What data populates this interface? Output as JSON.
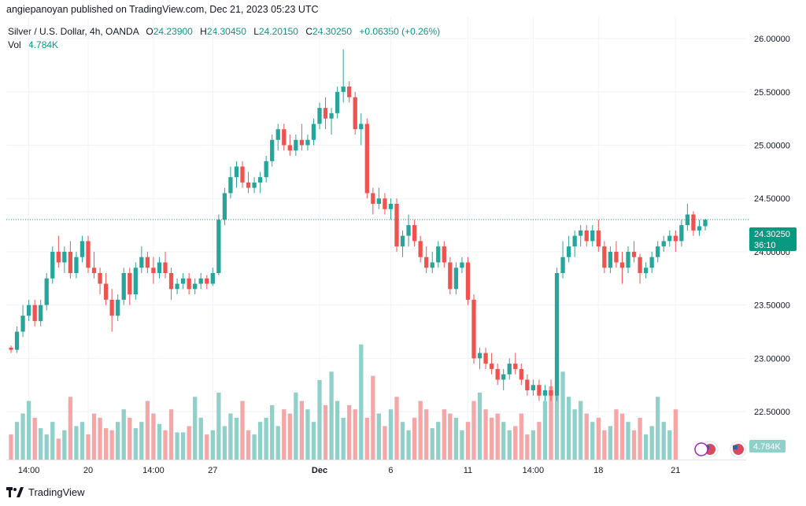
{
  "header": {
    "publisher_line": "angiepanoyan published on TradingView.com, Dec 21, 2023 05:23 UTC"
  },
  "legend": {
    "symbol": "Silver / U.S. Dollar, 4h, OANDA",
    "open_label": "O",
    "open": "24.23900",
    "high_label": "H",
    "high": "24.30450",
    "low_label": "L",
    "low": "24.20150",
    "close_label": "C",
    "close": "24.30250",
    "change": "+0.06350 (+0.26%)",
    "vol_label": "Vol",
    "vol_value": "4.784K"
  },
  "price_badge": {
    "price": "24.30250",
    "countdown": "36:10"
  },
  "volume_badge": "4.784K",
  "footer": {
    "brand": "TradingView"
  },
  "colors": {
    "up": "#26a69a",
    "down": "#ef5350",
    "up_vol": "#8fd0c8",
    "down_vol": "#f5a6a6",
    "badge": "#089981",
    "grid": "#f0f3fa"
  },
  "chart_data": {
    "type": "candlestick",
    "y_ticks": [
      "22.50000",
      "23.00000",
      "23.50000",
      "24.00000",
      "24.50000",
      "25.00000",
      "25.50000",
      "26.00000"
    ],
    "ylim": [
      22.05,
      26.2
    ],
    "x_ticks": [
      {
        "label": "14:00",
        "idx": 3
      },
      {
        "label": "20",
        "idx": 13
      },
      {
        "label": "14:00",
        "idx": 24
      },
      {
        "label": "27",
        "idx": 34
      },
      {
        "label": "Dec",
        "idx": 52
      },
      {
        "label": "6",
        "idx": 64
      },
      {
        "label": "11",
        "idx": 77
      },
      {
        "label": "14:00",
        "idx": 88
      },
      {
        "label": "18",
        "idx": 99
      },
      {
        "label": "21",
        "idx": 112
      }
    ],
    "grid": true,
    "last_price": 24.3025,
    "ohlc": [
      [
        23.1,
        23.12,
        23.05,
        23.08
      ],
      [
        23.08,
        23.3,
        23.05,
        23.25
      ],
      [
        23.25,
        23.5,
        23.2,
        23.4
      ],
      [
        23.4,
        23.55,
        23.35,
        23.5
      ],
      [
        23.5,
        23.55,
        23.3,
        23.35
      ],
      [
        23.35,
        23.55,
        23.3,
        23.5
      ],
      [
        23.5,
        23.8,
        23.45,
        23.75
      ],
      [
        23.75,
        24.05,
        23.7,
        24.0
      ],
      [
        24.0,
        24.15,
        23.85,
        23.9
      ],
      [
        23.9,
        24.05,
        23.8,
        24.0
      ],
      [
        24.0,
        24.1,
        23.75,
        23.8
      ],
      [
        23.8,
        24.0,
        23.75,
        23.95
      ],
      [
        23.95,
        24.15,
        23.9,
        24.1
      ],
      [
        24.1,
        24.15,
        23.8,
        23.85
      ],
      [
        23.85,
        24.0,
        23.75,
        23.8
      ],
      [
        23.8,
        23.85,
        23.6,
        23.7
      ],
      [
        23.7,
        23.8,
        23.5,
        23.55
      ],
      [
        23.55,
        23.65,
        23.25,
        23.4
      ],
      [
        23.4,
        23.6,
        23.35,
        23.55
      ],
      [
        23.55,
        23.85,
        23.5,
        23.8
      ],
      [
        23.8,
        23.85,
        23.5,
        23.6
      ],
      [
        23.6,
        23.9,
        23.55,
        23.85
      ],
      [
        23.85,
        24.05,
        23.8,
        23.95
      ],
      [
        23.95,
        24.0,
        23.8,
        23.85
      ],
      [
        23.85,
        23.95,
        23.7,
        23.8
      ],
      [
        23.8,
        23.95,
        23.75,
        23.9
      ],
      [
        23.9,
        24.0,
        23.75,
        23.8
      ],
      [
        23.8,
        23.85,
        23.55,
        23.65
      ],
      [
        23.65,
        23.75,
        23.6,
        23.7
      ],
      [
        23.7,
        23.8,
        23.65,
        23.75
      ],
      [
        23.75,
        23.8,
        23.6,
        23.65
      ],
      [
        23.65,
        23.75,
        23.6,
        23.7
      ],
      [
        23.7,
        23.8,
        23.65,
        23.75
      ],
      [
        23.75,
        23.78,
        23.65,
        23.7
      ],
      [
        23.7,
        23.85,
        23.68,
        23.8
      ],
      [
        23.8,
        24.35,
        23.78,
        24.3
      ],
      [
        24.3,
        24.6,
        24.25,
        24.55
      ],
      [
        24.55,
        24.8,
        24.5,
        24.7
      ],
      [
        24.7,
        24.85,
        24.6,
        24.8
      ],
      [
        24.8,
        24.85,
        24.6,
        24.65
      ],
      [
        24.65,
        24.75,
        24.55,
        24.6
      ],
      [
        24.6,
        24.7,
        24.55,
        24.65
      ],
      [
        24.65,
        24.75,
        24.55,
        24.7
      ],
      [
        24.7,
        24.9,
        24.65,
        24.85
      ],
      [
        24.85,
        25.1,
        24.8,
        25.05
      ],
      [
        25.05,
        25.2,
        24.95,
        25.15
      ],
      [
        25.15,
        25.2,
        24.95,
        25.0
      ],
      [
        25.0,
        25.1,
        24.9,
        24.95
      ],
      [
        24.95,
        25.1,
        24.9,
        25.05
      ],
      [
        25.05,
        25.2,
        24.95,
        25.0
      ],
      [
        25.0,
        25.1,
        24.95,
        25.05
      ],
      [
        25.05,
        25.25,
        25.0,
        25.2
      ],
      [
        25.2,
        25.4,
        25.15,
        25.35
      ],
      [
        25.35,
        25.45,
        25.15,
        25.25
      ],
      [
        25.25,
        25.35,
        25.1,
        25.3
      ],
      [
        25.3,
        25.55,
        25.25,
        25.5
      ],
      [
        25.5,
        25.9,
        25.4,
        25.55
      ],
      [
        25.55,
        25.6,
        25.4,
        25.45
      ],
      [
        25.45,
        25.5,
        25.1,
        25.15
      ],
      [
        25.15,
        25.3,
        25.0,
        25.2
      ],
      [
        25.2,
        25.25,
        24.5,
        24.55
      ],
      [
        24.55,
        24.6,
        24.35,
        24.45
      ],
      [
        24.45,
        24.6,
        24.4,
        24.5
      ],
      [
        24.5,
        24.55,
        24.35,
        24.4
      ],
      [
        24.4,
        24.5,
        24.3,
        24.45
      ],
      [
        24.45,
        24.5,
        24.0,
        24.05
      ],
      [
        24.05,
        24.2,
        23.95,
        24.15
      ],
      [
        24.15,
        24.35,
        24.05,
        24.25
      ],
      [
        24.25,
        24.3,
        24.05,
        24.1
      ],
      [
        24.1,
        24.15,
        23.9,
        23.95
      ],
      [
        23.95,
        24.05,
        23.8,
        23.85
      ],
      [
        23.85,
        24.0,
        23.8,
        23.9
      ],
      [
        23.9,
        24.1,
        23.85,
        24.05
      ],
      [
        24.05,
        24.1,
        23.85,
        23.9
      ],
      [
        23.9,
        23.95,
        23.6,
        23.65
      ],
      [
        23.65,
        23.9,
        23.6,
        23.85
      ],
      [
        23.85,
        23.95,
        23.8,
        23.9
      ],
      [
        23.9,
        23.95,
        23.5,
        23.55
      ],
      [
        23.55,
        23.6,
        22.95,
        23.0
      ],
      [
        23.0,
        23.1,
        22.9,
        23.05
      ],
      [
        23.05,
        23.1,
        22.9,
        22.95
      ],
      [
        22.95,
        23.05,
        22.85,
        22.9
      ],
      [
        22.9,
        22.95,
        22.75,
        22.8
      ],
      [
        22.8,
        22.9,
        22.7,
        22.85
      ],
      [
        22.85,
        23.0,
        22.8,
        22.95
      ],
      [
        22.95,
        23.05,
        22.85,
        22.9
      ],
      [
        22.9,
        22.95,
        22.75,
        22.8
      ],
      [
        22.8,
        22.85,
        22.65,
        22.7
      ],
      [
        22.7,
        22.8,
        22.65,
        22.75
      ],
      [
        22.75,
        22.8,
        22.6,
        22.65
      ],
      [
        22.65,
        22.75,
        22.6,
        22.7
      ],
      [
        22.7,
        22.8,
        22.6,
        22.65
      ],
      [
        22.65,
        23.85,
        22.6,
        23.8
      ],
      [
        23.8,
        24.1,
        23.75,
        23.95
      ],
      [
        23.95,
        24.15,
        23.9,
        24.05
      ],
      [
        24.05,
        24.2,
        23.95,
        24.15
      ],
      [
        24.15,
        24.25,
        24.05,
        24.2
      ],
      [
        24.2,
        24.25,
        24.05,
        24.1
      ],
      [
        24.1,
        24.25,
        24.05,
        24.2
      ],
      [
        24.2,
        24.3,
        24.0,
        24.05
      ],
      [
        24.05,
        24.1,
        23.8,
        23.85
      ],
      [
        23.85,
        24.05,
        23.8,
        24.0
      ],
      [
        24.0,
        24.1,
        23.85,
        23.9
      ],
      [
        23.9,
        24.0,
        23.7,
        23.85
      ],
      [
        23.85,
        24.05,
        23.8,
        24.0
      ],
      [
        24.0,
        24.1,
        23.9,
        23.95
      ],
      [
        23.95,
        23.98,
        23.7,
        23.8
      ],
      [
        23.8,
        23.9,
        23.75,
        23.85
      ],
      [
        23.85,
        24.0,
        23.8,
        23.95
      ],
      [
        23.95,
        24.1,
        23.9,
        24.05
      ],
      [
        24.05,
        24.15,
        24.0,
        24.1
      ],
      [
        24.1,
        24.2,
        24.05,
        24.15
      ],
      [
        24.15,
        24.2,
        24.0,
        24.1
      ],
      [
        24.1,
        24.3,
        24.05,
        24.25
      ],
      [
        24.25,
        24.45,
        24.2,
        24.35
      ],
      [
        24.35,
        24.38,
        24.15,
        24.2
      ],
      [
        24.2,
        24.3,
        24.15,
        24.24
      ],
      [
        24.24,
        24.31,
        24.2,
        24.3
      ]
    ],
    "volume": [
      12,
      18,
      22,
      28,
      20,
      15,
      12,
      18,
      10,
      14,
      30,
      16,
      18,
      12,
      22,
      20,
      15,
      14,
      18,
      24,
      20,
      15,
      18,
      28,
      22,
      17,
      14,
      24,
      13,
      13,
      16,
      30,
      20,
      12,
      14,
      32,
      16,
      22,
      20,
      28,
      14,
      12,
      18,
      20,
      26,
      16,
      24,
      22,
      32,
      28,
      24,
      18,
      38,
      26,
      42,
      28,
      20,
      26,
      24,
      55,
      20,
      40,
      22,
      16,
      24,
      30,
      18,
      14,
      20,
      28,
      24,
      15,
      18,
      24,
      22,
      20,
      14,
      18,
      28,
      32,
      24,
      20,
      22,
      18,
      14,
      16,
      22,
      12,
      14,
      18,
      28,
      35,
      38,
      42,
      30,
      24,
      28,
      22,
      18,
      20,
      14,
      16,
      24,
      22,
      18,
      14,
      20,
      12,
      16,
      30,
      18,
      14,
      24
    ]
  }
}
